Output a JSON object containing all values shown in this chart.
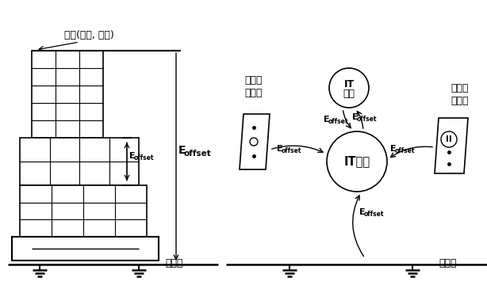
{
  "bg_color": "#ffffff",
  "line_color": "#000000",
  "building_label": "건물(철골, 철근)",
  "info_outlet_label": "정보용\n콘센트",
  "power_outlet_label": "전원용\n콘센트",
  "ground_label1": "지표면",
  "ground_label2": "지표면",
  "it_upper_line1": "IT",
  "it_upper_line2": "기기",
  "it_lower_label": "IT기기",
  "font_main": 9,
  "font_small": 7
}
